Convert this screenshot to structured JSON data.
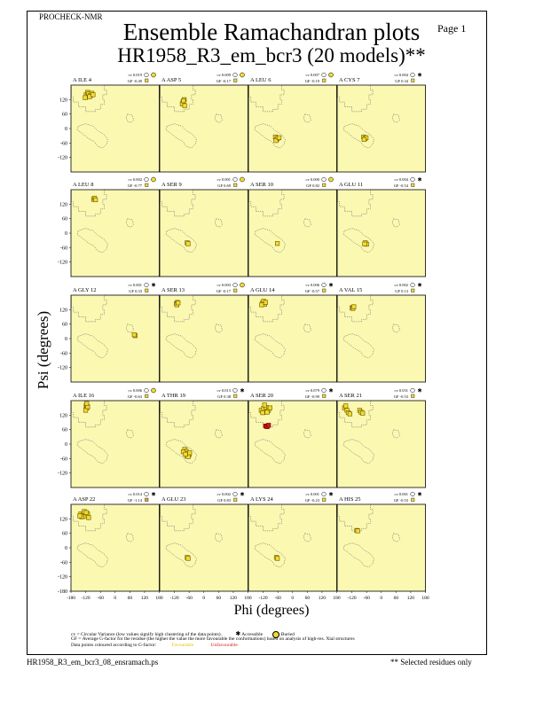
{
  "header": {
    "program": "PROCHECK-NMR",
    "page": "Page  1",
    "title": "Ensemble Ramachandran plots",
    "subtitle": "HR1958_R3_em_bcr3 (20 models)**"
  },
  "chart_data": {
    "type": "scatter",
    "xlabel": "Phi (degrees)",
    "ylabel": "Psi (degrees)",
    "xlim": [
      -180,
      180
    ],
    "ylim": [
      -180,
      180
    ],
    "x_ticks": [
      -180,
      -120,
      -60,
      0,
      60,
      120,
      180
    ],
    "y_ticks": [
      120,
      60,
      0,
      -60,
      -120
    ],
    "y_ticks_bottom": [
      120,
      60,
      0,
      -60,
      -120,
      -180
    ],
    "grid": false,
    "colors": {
      "panel_background": "#fbf8b2",
      "favourable": "#f2dc2e",
      "unfavourable": "#d01818",
      "point_border": "#6b5500",
      "region_outline": "#555555"
    },
    "panels": [
      {
        "residue": "A ILE 4",
        "cv": "cv 0.019",
        "gf": "GF -0.49",
        "symbol": "buried",
        "gf_color": "#f2dc2e",
        "points": [
          [
            -118,
            140
          ],
          [
            -112,
            150
          ],
          [
            -108,
            144
          ],
          [
            -100,
            138
          ],
          [
            -95,
            146
          ],
          [
            -122,
            128
          ],
          [
            -104,
            132
          ],
          [
            -90,
            140
          ]
        ],
        "red": []
      },
      {
        "residue": "A ASP 5",
        "cv": "cv 0.009",
        "gf": "GF -0.17",
        "symbol": "buried",
        "gf_color": "#f2dc2e",
        "points": [
          [
            -85,
            110
          ],
          [
            -80,
            120
          ],
          [
            -88,
            102
          ],
          [
            -78,
            95
          ],
          [
            -83,
            115
          ]
        ],
        "red": []
      },
      {
        "residue": "A LEU 6",
        "cv": "cv 0.007",
        "gf": "GF -0.19",
        "symbol": "buried",
        "gf_color": "#f2dc2e",
        "points": [
          [
            -70,
            -35
          ],
          [
            -65,
            -45
          ],
          [
            -60,
            -40
          ],
          [
            -68,
            -50
          ],
          [
            -55,
            -38
          ]
        ],
        "red": []
      },
      {
        "residue": "A CYS 7",
        "cv": "cv 0.004",
        "gf": "GF 0.34",
        "symbol": "accessible",
        "gf_color": "#f2dc2e",
        "points": [
          [
            -72,
            -35
          ],
          [
            -66,
            -42
          ],
          [
            -62,
            -38
          ],
          [
            -70,
            -45
          ]
        ],
        "red": []
      },
      {
        "residue": "A LEU 8",
        "cv": "cv 0.002",
        "gf": "GF -0.77",
        "symbol": "buried",
        "gf_color": "#f2dc2e",
        "points": [
          [
            -88,
            140
          ],
          [
            -84,
            145
          ],
          [
            -80,
            138
          ]
        ],
        "red": []
      },
      {
        "residue": "A SER 9",
        "cv": "cv 0.001",
        "gf": "GF 0.69",
        "symbol": "buried",
        "gf_color": "#f2dc2e",
        "points": [
          [
            -68,
            -40
          ],
          [
            -64,
            -44
          ]
        ],
        "red": []
      },
      {
        "residue": "A SER 10",
        "cv": "cv 0.000",
        "gf": "GF 0.82",
        "symbol": "buried",
        "gf_color": "#f2dc2e",
        "points": [
          [
            -62,
            -43
          ]
        ],
        "red": []
      },
      {
        "residue": "A GLU 11",
        "cv": "cv 0.004",
        "gf": "GF -0.54",
        "symbol": "accessible",
        "gf_color": "#f2dc2e",
        "points": [
          [
            -65,
            -40
          ],
          [
            -60,
            -46
          ],
          [
            -68,
            -45
          ]
        ],
        "red": []
      },
      {
        "residue": "A GLY 12",
        "cv": "cv 0.001",
        "gf": "GF 0.33",
        "symbol": "accessible",
        "gf_color": "#f2dc2e",
        "points": [
          [
            82,
            12
          ],
          [
            78,
            16
          ]
        ],
        "red": []
      },
      {
        "residue": "A SER 13",
        "cv": "cv 0.003",
        "gf": "GF -0.17",
        "symbol": "buried",
        "gf_color": "#f2dc2e",
        "points": [
          [
            -112,
            145
          ],
          [
            -108,
            150
          ],
          [
            -110,
            140
          ],
          [
            -105,
            148
          ]
        ],
        "red": []
      },
      {
        "residue": "A GLU 14",
        "cv": "cv 0.006",
        "gf": "GF -0.57",
        "symbol": "accessible",
        "gf_color": "#f2dc2e",
        "points": [
          [
            -122,
            148
          ],
          [
            -118,
            155
          ],
          [
            -114,
            142
          ],
          [
            -126,
            140
          ],
          [
            -110,
            150
          ]
        ],
        "red": []
      },
      {
        "residue": "A VAL 15",
        "cv": "cv 0.002",
        "gf": "GF 0.13",
        "symbol": "accessible",
        "gf_color": "#f2dc2e",
        "points": [
          [
            -120,
            128
          ],
          [
            -116,
            125
          ],
          [
            -112,
            132
          ]
        ],
        "red": []
      },
      {
        "residue": "A ILE 16",
        "cv": "cv 0.006",
        "gf": "GF -0.63",
        "symbol": "buried",
        "gf_color": "#f2dc2e",
        "points": [
          [
            -118,
            160
          ],
          [
            -115,
            150
          ],
          [
            -120,
            140
          ],
          [
            -112,
            155
          ],
          [
            -116,
            168
          ]
        ],
        "red": []
      },
      {
        "residue": "A THR 19",
        "cv": "cv 0.013",
        "gf": "GF 0.38",
        "symbol": "accessible",
        "gf_color": "#f2dc2e",
        "points": [
          [
            -78,
            -22
          ],
          [
            -72,
            -30
          ],
          [
            -66,
            -38
          ],
          [
            -60,
            -44
          ],
          [
            -70,
            -48
          ],
          [
            -84,
            -32
          ],
          [
            -64,
            -52
          ],
          [
            -58,
            -36
          ],
          [
            -75,
            -42
          ]
        ],
        "red": []
      },
      {
        "residue": "A SER 20",
        "cv": "cv 0.079",
        "gf": "GF -0.99",
        "symbol": "accessible",
        "gf_color": "#f2dc2e",
        "points": [
          [
            -128,
            140
          ],
          [
            -118,
            148
          ],
          [
            -108,
            152
          ],
          [
            -98,
            140
          ],
          [
            -122,
            130
          ],
          [
            -114,
            162
          ],
          [
            -92,
            150
          ],
          [
            -104,
            132
          ]
        ],
        "red": [
          [
            -110,
            75
          ],
          [
            -104,
            72
          ],
          [
            -98,
            78
          ]
        ]
      },
      {
        "residue": "A SER 21",
        "cv": "cv 0.031",
        "gf": "GF -0.53",
        "symbol": "accessible",
        "gf_color": "#f2dc2e",
        "points": [
          [
            -150,
            150
          ],
          [
            -140,
            140
          ],
          [
            -135,
            130
          ],
          [
            -128,
            125
          ],
          [
            -145,
            158
          ],
          [
            -88,
            140
          ],
          [
            -82,
            132
          ],
          [
            -76,
            128
          ]
        ],
        "red": []
      },
      {
        "residue": "A ASP 22",
        "cv": "cv 0.014",
        "gf": "GF -1.14",
        "symbol": "accessible",
        "gf_color": "#e8a33a",
        "points": [
          [
            -140,
            140
          ],
          [
            -132,
            135
          ],
          [
            -126,
            150
          ],
          [
            -120,
            130
          ],
          [
            -112,
            140
          ],
          [
            -136,
            128
          ],
          [
            -118,
            146
          ],
          [
            -108,
            125
          ],
          [
            -144,
            132
          ]
        ],
        "red": []
      },
      {
        "residue": "A GLU 23",
        "cv": "cv 0.002",
        "gf": "GF 0.83",
        "symbol": "accessible",
        "gf_color": "#f2dc2e",
        "points": [
          [
            -68,
            -40
          ],
          [
            -64,
            -44
          ]
        ],
        "red": []
      },
      {
        "residue": "A LYS 24",
        "cv": "cv 0.001",
        "gf": "GF -0.23",
        "symbol": "accessible",
        "gf_color": "#f2dc2e",
        "points": [
          [
            -66,
            -40
          ],
          [
            -62,
            -44
          ]
        ],
        "red": []
      },
      {
        "residue": "A HIS 25",
        "cv": "cv 0.001",
        "gf": "GF -0.53",
        "symbol": "accessible",
        "gf_color": "#f2dc2e",
        "points": [
          [
            -100,
            72
          ],
          [
            -96,
            70
          ]
        ],
        "red": []
      }
    ]
  },
  "legend": {
    "line1": "cv = Circular Variance (low values signify high clustering of the data points).",
    "accessible": "Accessible",
    "buried": "Buried",
    "line2": "GF = Average G-factor for the residue (the higher the value the more favourable the conformations) based on analysis of high-res. Xtal structures",
    "line3": "Data points coloured according to G-factor:",
    "favourable": "Favourable",
    "unfavourable": "Unfavourable"
  },
  "footer": {
    "filename": "HR1958_R3_em_bcr3_08_ensramach.ps",
    "note": "** Selected residues only"
  }
}
